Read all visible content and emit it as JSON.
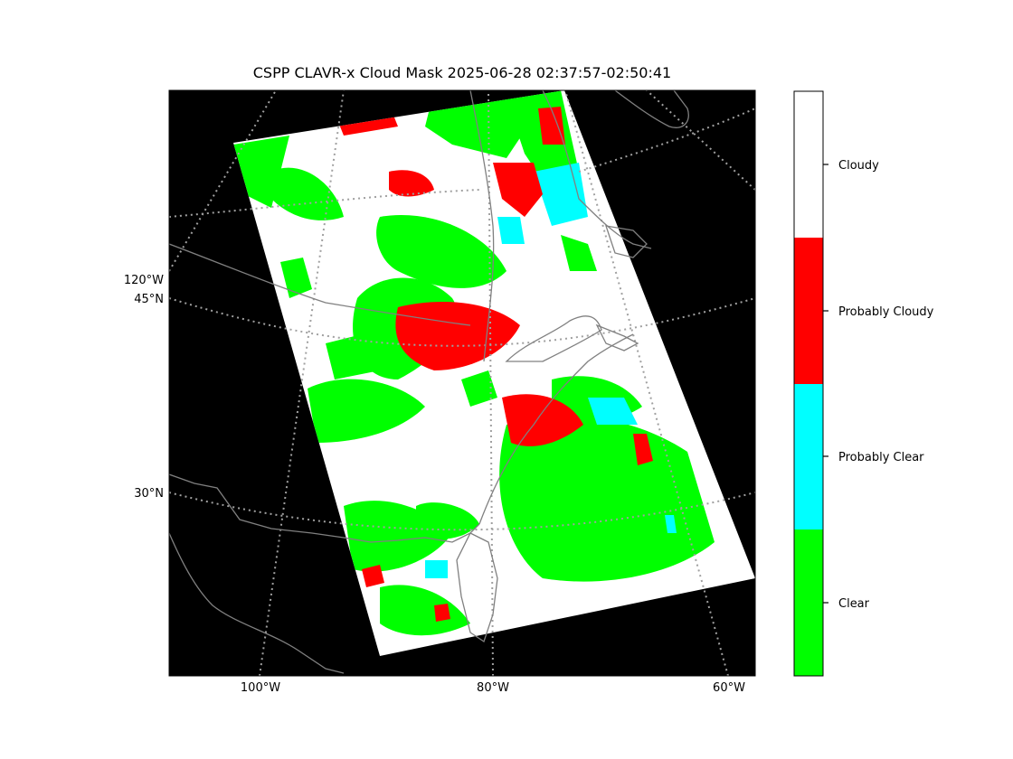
{
  "title": "CSPP CLAVR-x Cloud Mask 2025-06-28 02:37:57-02:50:41",
  "map": {
    "lon_labels": [
      "100°W",
      "80°W",
      "60°W"
    ],
    "lat_labels": [
      "45°N",
      "30°N"
    ],
    "meridian_labels_left": [
      "120°W"
    ],
    "background_color": "#000000",
    "coastline_color": "#808080",
    "graticule_style": "dotted",
    "graticule_color": "#a0a0a0"
  },
  "colorbar": {
    "classes": [
      {
        "label": "Cloudy",
        "color": "#ffffff"
      },
      {
        "label": "Probably Cloudy",
        "color": "#ff0000"
      },
      {
        "label": "Probably Clear",
        "color": "#00ffff"
      },
      {
        "label": "Clear",
        "color": "#00ff00"
      }
    ]
  }
}
